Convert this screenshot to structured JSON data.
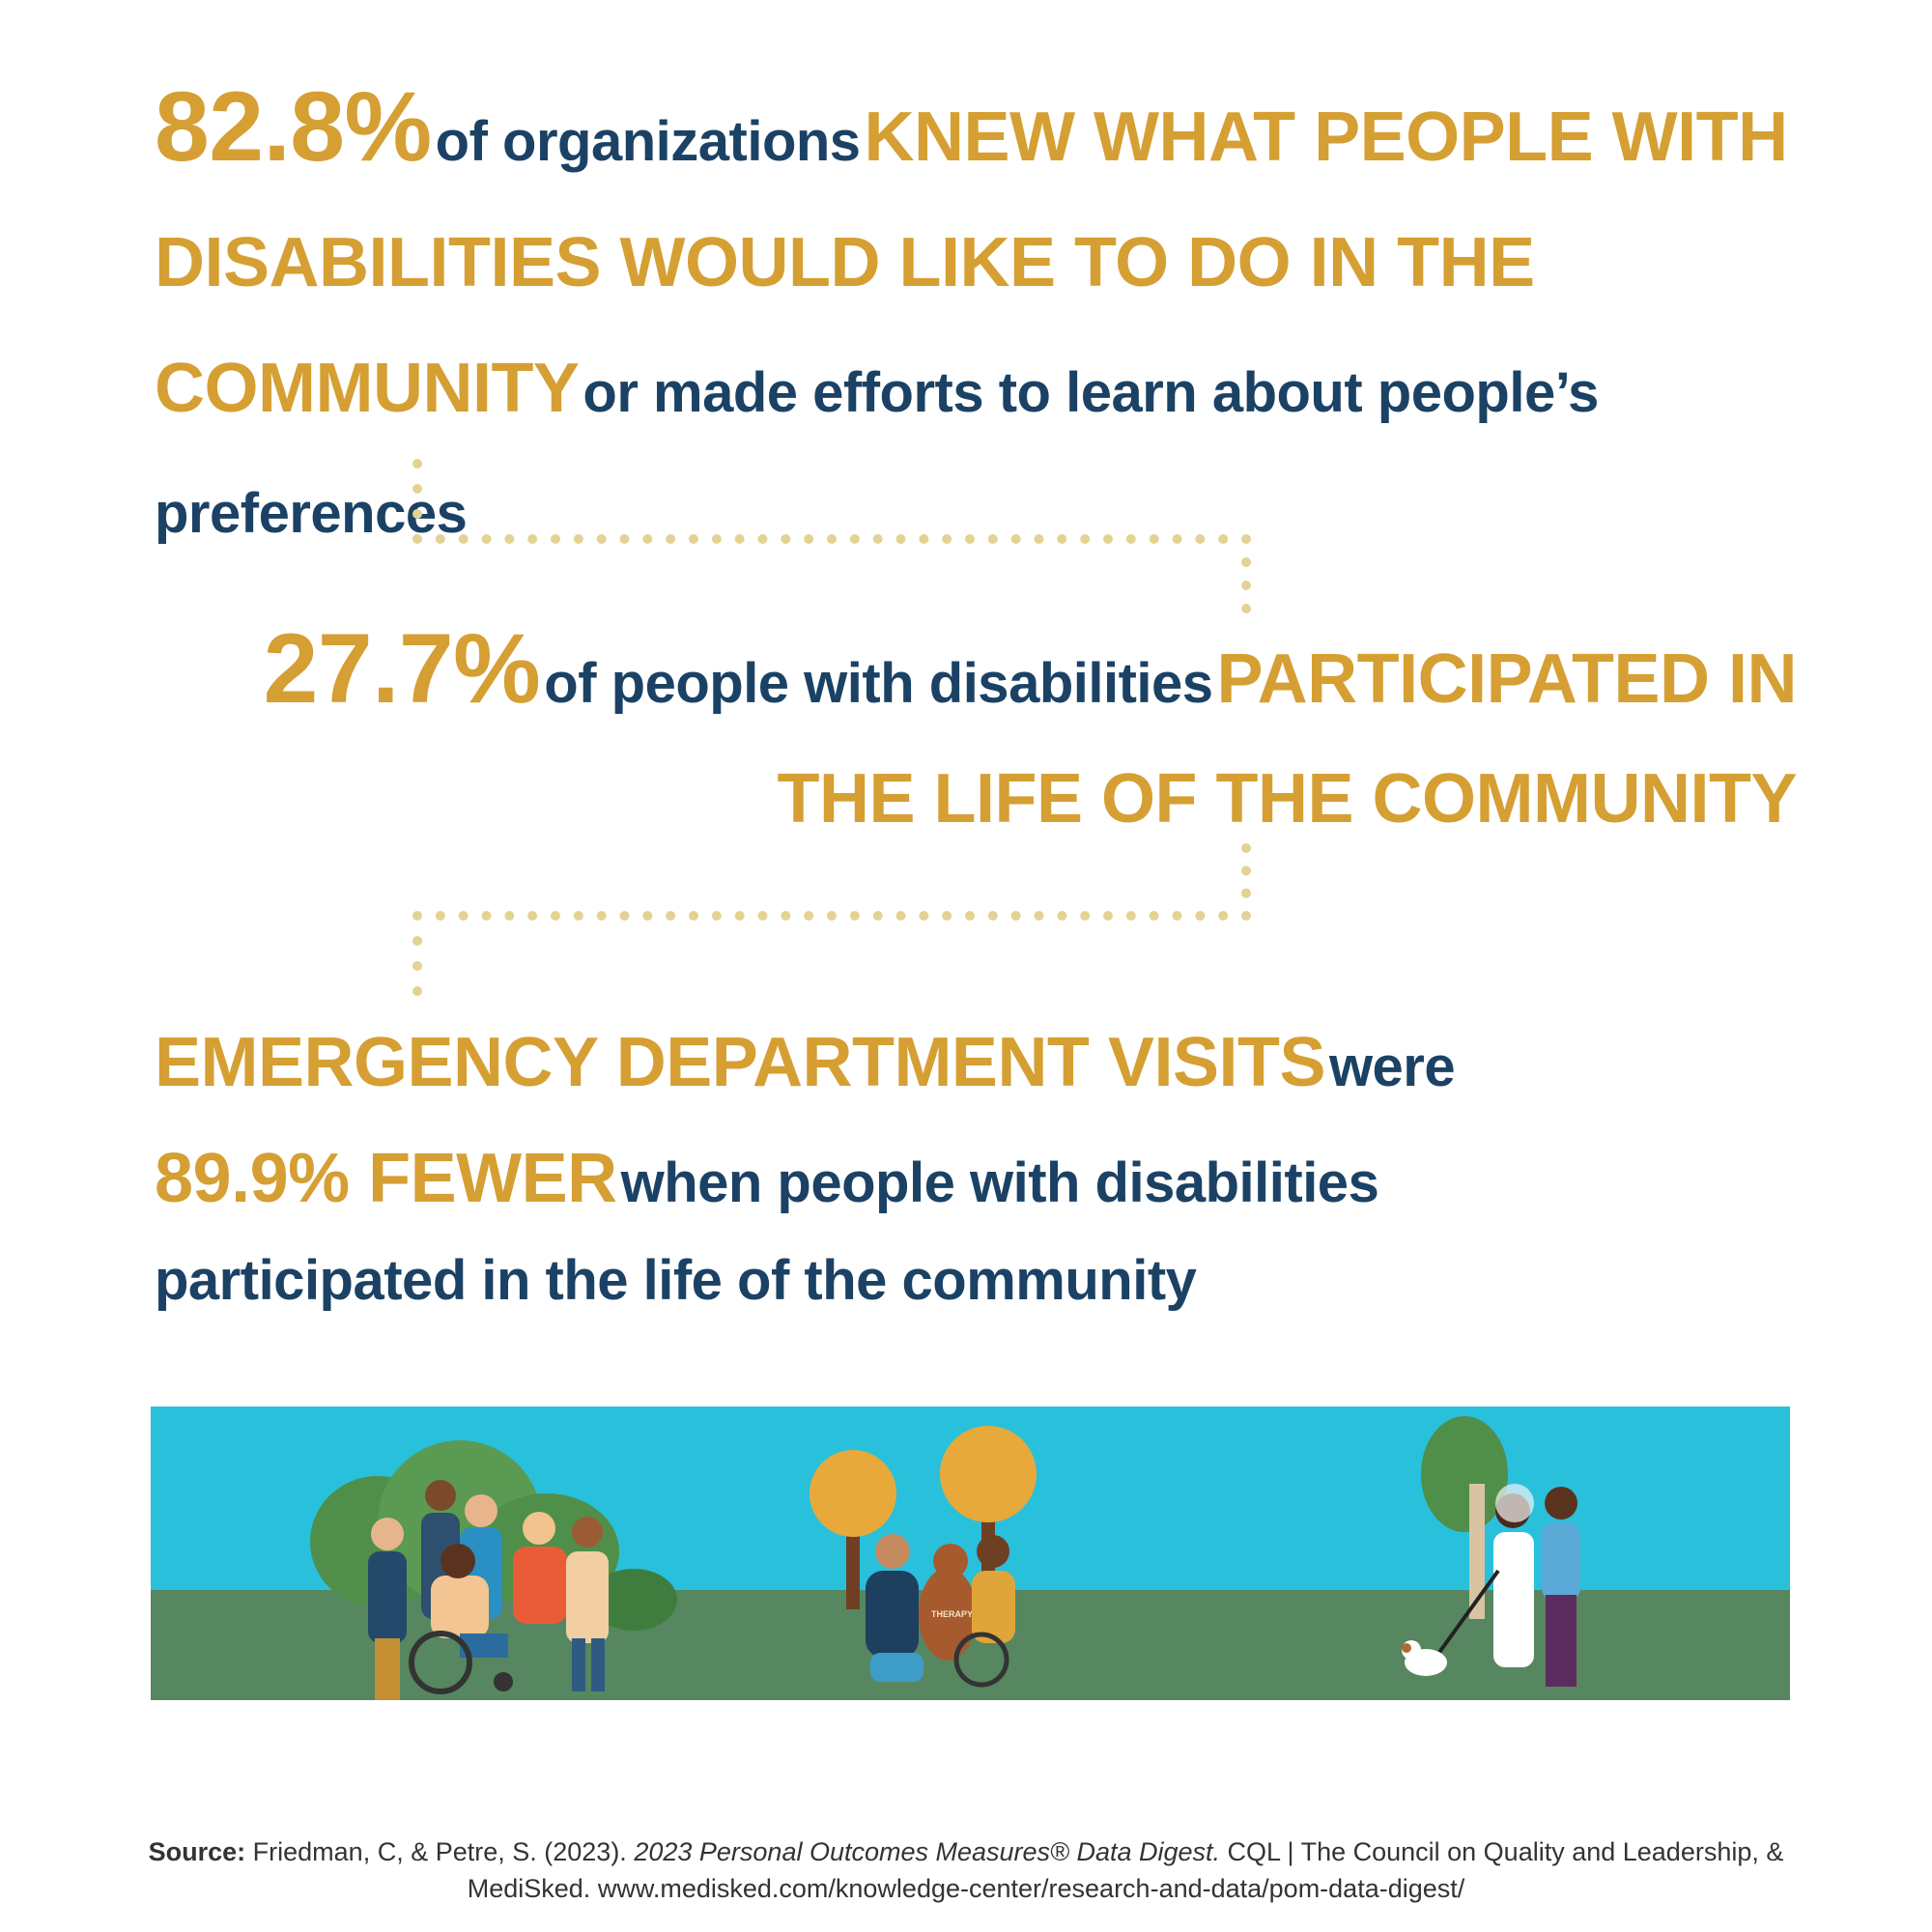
{
  "stat1": {
    "percent": "82.8%",
    "text_a": "of organizations",
    "highlight": "KNEW WHAT PEOPLE WITH DISABILITIES WOULD LIKE TO DO IN THE COMMUNITY",
    "text_b": "or made efforts to learn about people’s preferences"
  },
  "stat2": {
    "percent": "27.7%",
    "text_a": "of people with disabilities",
    "highlight": "PARTICIPATED IN THE LIFE OF THE COMMUNITY"
  },
  "stat3": {
    "highlight_a": "EMERGENCY DEPARTMENT VISITS",
    "text_a": "were",
    "highlight_b": "89.9% FEWER",
    "text_b": "when people with disabilities",
    "text_c": "participated in the life of the community"
  },
  "illustration": {
    "dog_vest_label": "THERAPY"
  },
  "source": {
    "label": "Source:",
    "authors": "Friedman, C, & Petre, S. (2023).",
    "title": "2023 Personal Outcomes Measures® Data Digest.",
    "org": "CQL | The Council on Quality and Leadership, & MediSked.",
    "url": "www.medisked.com/knowledge-center/research-and-data/pom-data-digest/"
  },
  "colors": {
    "gold": "#d59f33",
    "navy": "#1b4265",
    "sky": "#29c0dc",
    "grass": "#568760",
    "dots": "#e3d294"
  }
}
